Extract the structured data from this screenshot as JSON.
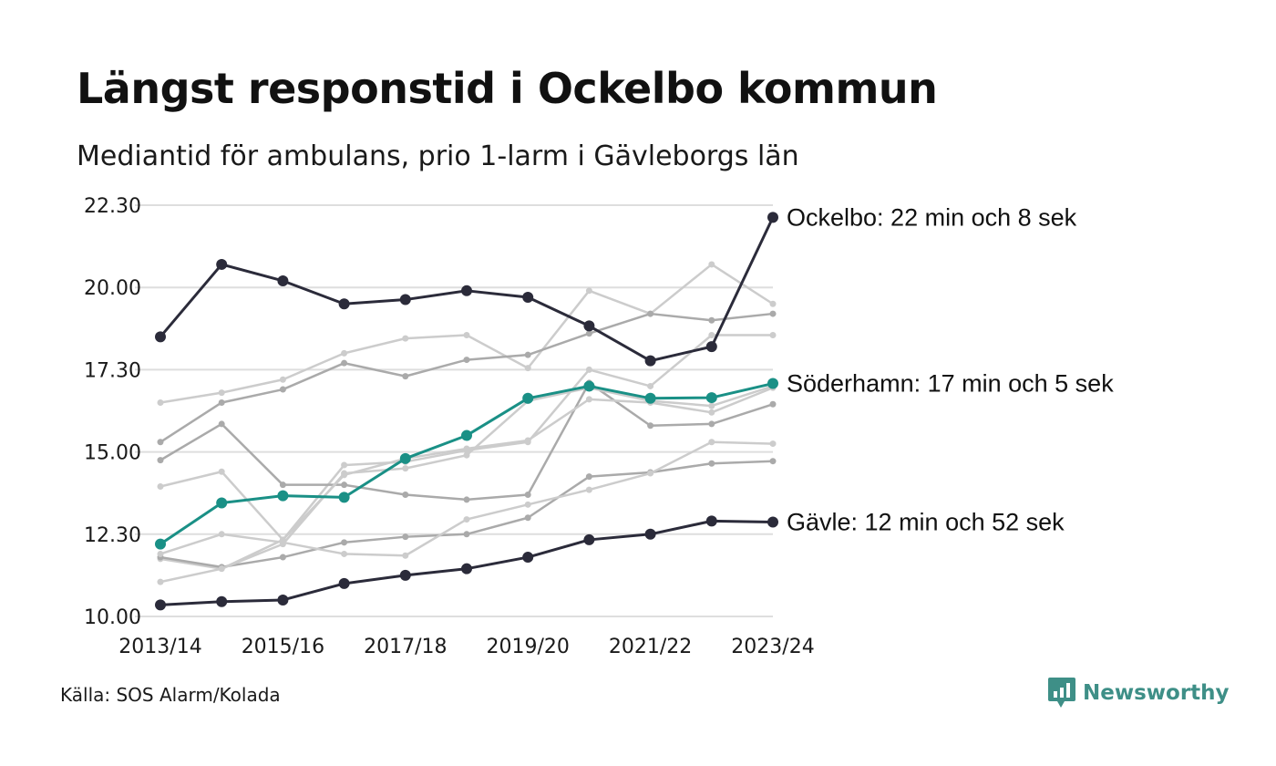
{
  "title": "Längst responstid i Ockelbo kommun",
  "subtitle": "Mediantid för ambulans, prio 1-larm i Gävleborgs län",
  "source": "Källa: SOS Alarm/Kolada",
  "brand": {
    "name": "Newsworthy",
    "icon": "newsworthy-logo-icon",
    "color": "#3e8f87"
  },
  "colors": {
    "highlight_dark": "#2b2b3a",
    "highlight_teal": "#1a9086",
    "background_light": "#cccccc",
    "background_mid": "#aaaaaa",
    "grid": "#dedede"
  },
  "chart_data": {
    "type": "line",
    "x": [
      "2013/14",
      "2014/15",
      "2015/16",
      "2016/17",
      "2017/18",
      "2018/19",
      "2019/20",
      "2020/21",
      "2021/22",
      "2022/23",
      "2023/24"
    ],
    "x_tick_labels": [
      "2013/14",
      "2015/16",
      "2017/18",
      "2019/20",
      "2021/22",
      "2023/24"
    ],
    "y_tick_labels": [
      "10.00",
      "12.30",
      "15.00",
      "17.30",
      "20.00",
      "22.30"
    ],
    "ylim": [
      10,
      22.5
    ],
    "grid": "horizontal",
    "y_unit": "minutes",
    "highlighted_series": [
      {
        "label": "Ockelbo: 22 min och 8 sek",
        "color": "#2b2b3a",
        "values": [
          18.5,
          20.7,
          20.2,
          19.5,
          19.63,
          19.9,
          19.7,
          18.83,
          17.77,
          18.2,
          22.13
        ]
      },
      {
        "label": "Söderhamn: 17 min och 5 sek",
        "color": "#1a9086",
        "values": [
          12.2,
          13.45,
          13.67,
          13.62,
          14.8,
          15.5,
          16.63,
          17.0,
          16.63,
          16.65,
          17.08
        ]
      },
      {
        "label": "Gävle: 12 min och 52 sek",
        "color": "#2b2b3a",
        "values": [
          10.35,
          10.45,
          10.5,
          11.0,
          11.25,
          11.45,
          11.8,
          12.33,
          12.5,
          12.9,
          12.87
        ]
      }
    ],
    "background_series": [
      {
        "color": "#cccccc",
        "values": [
          16.5,
          16.8,
          17.2,
          18.0,
          18.45,
          18.55,
          17.55,
          19.9,
          19.2,
          20.7,
          19.5
        ]
      },
      {
        "color": "#aaaaaa",
        "values": [
          15.3,
          16.5,
          16.9,
          17.7,
          17.3,
          17.8,
          17.95,
          18.6,
          19.2,
          19.0,
          19.2
        ]
      },
      {
        "color": "#cccccc",
        "values": [
          13.95,
          14.4,
          12.33,
          14.6,
          14.7,
          15.05,
          15.3,
          17.5,
          17.0,
          18.55,
          18.55
        ]
      },
      {
        "color": "#aaaaaa",
        "values": [
          14.75,
          15.85,
          14.0,
          14.0,
          13.7,
          13.55,
          13.7,
          17.1,
          15.8,
          15.85,
          16.45
        ]
      },
      {
        "color": "#cccccc",
        "values": [
          11.75,
          11.45,
          12.33,
          14.3,
          14.8,
          15.1,
          15.35,
          16.6,
          16.5,
          16.2,
          16.95
        ]
      },
      {
        "color": "#aaaaaa",
        "values": [
          11.8,
          11.5,
          11.8,
          12.25,
          12.42,
          12.5,
          13.0,
          14.25,
          14.38,
          14.65,
          14.72
        ]
      },
      {
        "color": "#cccccc",
        "values": [
          11.9,
          12.5,
          12.25,
          11.9,
          11.85,
          12.95,
          13.4,
          13.85,
          14.35,
          15.3,
          15.25
        ]
      },
      {
        "color": "#cccccc",
        "values": [
          11.05,
          11.45,
          12.2,
          14.35,
          14.5,
          14.9,
          16.55,
          16.95,
          16.55,
          16.4,
          17.0
        ]
      }
    ]
  }
}
